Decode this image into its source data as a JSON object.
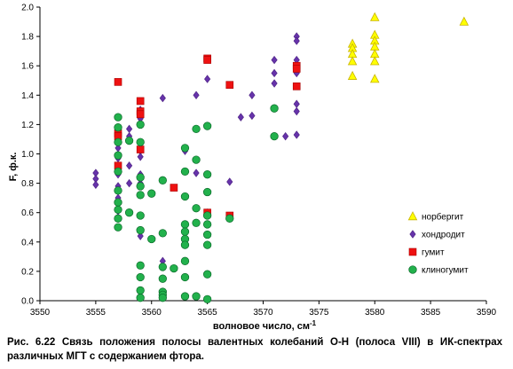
{
  "chart_data": {
    "type": "scatter",
    "xlabel": "волновое число, см",
    "xlabel_sup": "-1",
    "ylabel": "F, ф.к.",
    "xlim": [
      3550,
      3590
    ],
    "ylim": [
      0,
      2.0
    ],
    "xticks": [
      "3550",
      "3555",
      "3560",
      "3565",
      "3570",
      "3575",
      "3580",
      "3585",
      "3590"
    ],
    "yticks": [
      "0.0",
      "0.2",
      "0.4",
      "0.6",
      "0.8",
      "1.0",
      "1.2",
      "1.4",
      "1.6",
      "1.8",
      "2.0"
    ],
    "grid": false,
    "legend_position": "bottom-right",
    "series": [
      {
        "name": "норбергит",
        "marker": "triangle",
        "color": "#ffff00",
        "stroke": "#c8b400",
        "points": [
          [
            3578,
            1.75
          ],
          [
            3578,
            1.72
          ],
          [
            3578,
            1.68
          ],
          [
            3578,
            1.63
          ],
          [
            3578,
            1.53
          ],
          [
            3580,
            1.93
          ],
          [
            3580,
            1.81
          ],
          [
            3580,
            1.77
          ],
          [
            3580,
            1.73
          ],
          [
            3580,
            1.68
          ],
          [
            3580,
            1.63
          ],
          [
            3580,
            1.51
          ],
          [
            3588,
            1.9
          ]
        ]
      },
      {
        "name": "хондродит",
        "marker": "diamond",
        "color": "#6633aa",
        "stroke": "#4b2080",
        "points": [
          [
            3555,
            0.87
          ],
          [
            3555,
            0.83
          ],
          [
            3555,
            0.79
          ],
          [
            3557,
            1.08
          ],
          [
            3557,
            1.04
          ],
          [
            3557,
            0.97
          ],
          [
            3557,
            0.9
          ],
          [
            3557,
            0.86
          ],
          [
            3557,
            0.78
          ],
          [
            3557,
            0.7
          ],
          [
            3557,
            0.66
          ],
          [
            3557,
            0.61
          ],
          [
            3558,
            1.17
          ],
          [
            3558,
            1.12
          ],
          [
            3558,
            0.92
          ],
          [
            3558,
            0.8
          ],
          [
            3559,
            1.3
          ],
          [
            3559,
            1.24
          ],
          [
            3559,
            1.02
          ],
          [
            3559,
            0.98
          ],
          [
            3559,
            0.86
          ],
          [
            3559,
            0.8
          ],
          [
            3559,
            0.44
          ],
          [
            3561,
            1.38
          ],
          [
            3561,
            0.27
          ],
          [
            3563,
            1.02
          ],
          [
            3564,
            1.4
          ],
          [
            3564,
            0.87
          ],
          [
            3565,
            1.51
          ],
          [
            3565,
            0.6
          ],
          [
            3567,
            0.81
          ],
          [
            3568,
            1.25
          ],
          [
            3569,
            1.4
          ],
          [
            3569,
            1.26
          ],
          [
            3571,
            1.64
          ],
          [
            3571,
            1.55
          ],
          [
            3571,
            1.48
          ],
          [
            3572,
            1.12
          ],
          [
            3573,
            1.8
          ],
          [
            3573,
            1.77
          ],
          [
            3573,
            1.64
          ],
          [
            3573,
            1.58
          ],
          [
            3573,
            1.55
          ],
          [
            3573,
            1.34
          ],
          [
            3573,
            1.29
          ],
          [
            3573,
            1.13
          ]
        ]
      },
      {
        "name": "гумит",
        "marker": "square",
        "color": "#ee1111",
        "stroke": "#aa0000",
        "points": [
          [
            3557,
            1.49
          ],
          [
            3557,
            1.14
          ],
          [
            3557,
            1.12
          ],
          [
            3557,
            0.92
          ],
          [
            3559,
            1.36
          ],
          [
            3559,
            1.29
          ],
          [
            3559,
            1.27
          ],
          [
            3559,
            1.03
          ],
          [
            3562,
            0.77
          ],
          [
            3565,
            1.65
          ],
          [
            3565,
            1.64
          ],
          [
            3565,
            0.6
          ],
          [
            3567,
            1.47
          ],
          [
            3567,
            0.58
          ],
          [
            3573,
            1.6
          ],
          [
            3573,
            1.58
          ],
          [
            3573,
            1.46
          ]
        ]
      },
      {
        "name": "клиногумит",
        "marker": "circle",
        "color": "#22b14c",
        "stroke": "#0b6b2a",
        "points": [
          [
            3557,
            1.25
          ],
          [
            3557,
            1.18
          ],
          [
            3557,
            1.08
          ],
          [
            3557,
            0.99
          ],
          [
            3557,
            0.88
          ],
          [
            3557,
            0.75
          ],
          [
            3557,
            0.67
          ],
          [
            3557,
            0.62
          ],
          [
            3557,
            0.56
          ],
          [
            3557,
            0.5
          ],
          [
            3558,
            1.09
          ],
          [
            3558,
            0.6
          ],
          [
            3559,
            1.2
          ],
          [
            3559,
            1.08
          ],
          [
            3559,
            0.84
          ],
          [
            3559,
            0.78
          ],
          [
            3559,
            0.72
          ],
          [
            3559,
            0.58
          ],
          [
            3559,
            0.48
          ],
          [
            3559,
            0.24
          ],
          [
            3559,
            0.16
          ],
          [
            3559,
            0.07
          ],
          [
            3559,
            0.02
          ],
          [
            3560,
            0.73
          ],
          [
            3560,
            0.42
          ],
          [
            3561,
            0.82
          ],
          [
            3561,
            0.46
          ],
          [
            3561,
            0.23
          ],
          [
            3561,
            0.15
          ],
          [
            3561,
            0.06
          ],
          [
            3561,
            0.04
          ],
          [
            3561,
            0.02
          ],
          [
            3562,
            0.22
          ],
          [
            3563,
            1.04
          ],
          [
            3563,
            0.88
          ],
          [
            3563,
            0.71
          ],
          [
            3563,
            0.52
          ],
          [
            3563,
            0.47
          ],
          [
            3563,
            0.42
          ],
          [
            3563,
            0.38
          ],
          [
            3563,
            0.27
          ],
          [
            3563,
            0.16
          ],
          [
            3563,
            0.03
          ],
          [
            3564,
            1.17
          ],
          [
            3564,
            0.96
          ],
          [
            3564,
            0.63
          ],
          [
            3564,
            0.53
          ],
          [
            3564,
            0.03
          ],
          [
            3565,
            1.19
          ],
          [
            3565,
            0.86
          ],
          [
            3565,
            0.74
          ],
          [
            3565,
            0.58
          ],
          [
            3565,
            0.52
          ],
          [
            3565,
            0.45
          ],
          [
            3565,
            0.38
          ],
          [
            3565,
            0.18
          ],
          [
            3565,
            0.01
          ],
          [
            3567,
            0.56
          ],
          [
            3571,
            1.31
          ],
          [
            3571,
            1.12
          ]
        ]
      }
    ]
  },
  "caption": "Рис. 6.22 Связь положения полосы валентных колебаний O-H (полоса VIII) в ИК-спектрах различных МГТ с содержанием фтора."
}
